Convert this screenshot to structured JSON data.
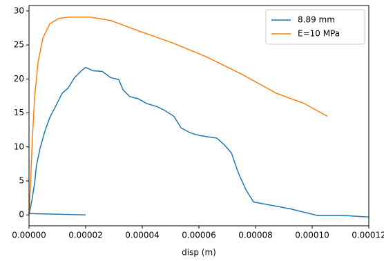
{
  "chart_data": {
    "type": "line",
    "xlabel": "disp (m)",
    "xlim": [
      0,
      0.00012
    ],
    "ylim": [
      -1.6,
      30.8
    ],
    "xticks": [
      {
        "value": 0,
        "label": "0.00000"
      },
      {
        "value": 2e-05,
        "label": "0.00002"
      },
      {
        "value": 4e-05,
        "label": "0.00004"
      },
      {
        "value": 6e-05,
        "label": "0.00006"
      },
      {
        "value": 8e-05,
        "label": "0.00008"
      },
      {
        "value": 0.0001,
        "label": "0.00010"
      },
      {
        "value": 0.00012,
        "label": "0.00012"
      }
    ],
    "yticks": [
      0,
      5,
      10,
      15,
      20,
      25,
      30
    ],
    "legend": "upper right",
    "series": [
      {
        "name": "8.89 mm",
        "color": "#1f77b4",
        "x": [
          0,
          1e-06,
          2e-06,
          2.6e-06,
          3.9e-06,
          5.6e-06,
          7.3e-06,
          9.3e-06,
          1.17e-05,
          1.37e-05,
          1.61e-05,
          1.85e-05,
          2e-05,
          2.27e-05,
          2.59e-05,
          2.88e-05,
          3.17e-05,
          3.32e-05,
          3.56e-05,
          3.85e-05,
          4.15e-05,
          4.54e-05,
          4.78e-05,
          5.12e-05,
          5.37e-05,
          5.68e-05,
          6e-05,
          6.29e-05,
          6.63e-05,
          6.9e-05,
          7.15e-05,
          7.39e-05,
          7.66e-05,
          7.93e-05,
          9.22e-05,
          0.000102,
          0.0001117,
          0.00012,
          null,
          0,
          2e-05
        ],
        "values": [
          0,
          2.1,
          4.7,
          7.2,
          9.8,
          12.3,
          14.3,
          15.9,
          17.9,
          18.6,
          20.2,
          21.2,
          21.7,
          21.2,
          21.1,
          20.2,
          19.9,
          18.4,
          17.4,
          17.1,
          16.4,
          15.9,
          15.4,
          14.5,
          12.8,
          12.1,
          11.7,
          11.5,
          11.3,
          10.3,
          9.1,
          6.2,
          3.7,
          1.9,
          0.9,
          -0.1,
          -0.1,
          -0.3,
          null,
          0.2,
          0
        ]
      },
      {
        "name": "E=10 MPa",
        "color": "#ff7f0e",
        "x": [
          0,
          5e-07,
          1.2e-06,
          2e-06,
          3.2e-06,
          4.9e-06,
          7.3e-06,
          1.05e-05,
          1.41e-05,
          2.15e-05,
          2.88e-05,
          3.85e-05,
          5.07e-05,
          6.29e-05,
          7.51e-05,
          8.73e-05,
          9.71e-05,
          0.0001054
        ],
        "values": [
          0,
          4.2,
          11.3,
          17.4,
          22.5,
          26,
          28.1,
          28.9,
          29.1,
          29.1,
          28.6,
          27.1,
          25.3,
          23.2,
          20.7,
          17.9,
          16.4,
          14.5
        ]
      }
    ]
  }
}
